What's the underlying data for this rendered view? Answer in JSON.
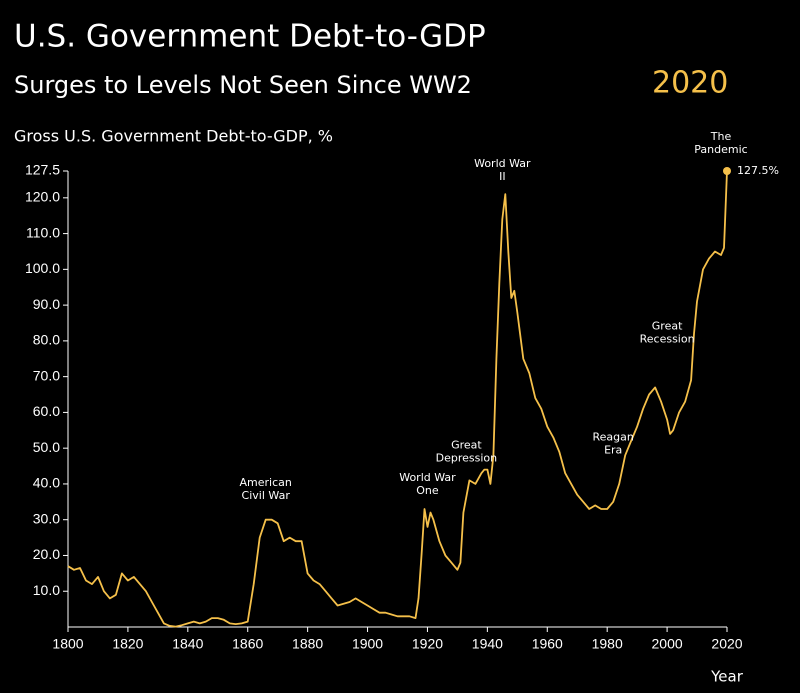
{
  "chart_data": {
    "type": "line",
    "title": "U.S. Government Debt-to-GDP",
    "subtitle": "Surges to Levels Not Seen Since WW2",
    "subtitle_highlight": "2020",
    "y_label": "Gross U.S. Government Debt-to-GDP, %",
    "x_label": "Year",
    "color": "#f5c04a",
    "x": [
      1800,
      1802,
      1804,
      1806,
      1808,
      1810,
      1812,
      1814,
      1816,
      1818,
      1820,
      1822,
      1824,
      1826,
      1828,
      1830,
      1832,
      1834,
      1836,
      1838,
      1840,
      1842,
      1844,
      1846,
      1848,
      1850,
      1852,
      1854,
      1856,
      1858,
      1860,
      1862,
      1864,
      1866,
      1868,
      1870,
      1872,
      1874,
      1876,
      1878,
      1880,
      1882,
      1884,
      1886,
      1888,
      1890,
      1892,
      1894,
      1896,
      1898,
      1900,
      1902,
      1904,
      1906,
      1908,
      1910,
      1912,
      1914,
      1916,
      1917,
      1918,
      1919,
      1920,
      1921,
      1922,
      1924,
      1926,
      1928,
      1930,
      1931,
      1932,
      1934,
      1936,
      1938,
      1939,
      1940,
      1941,
      1942,
      1943,
      1944,
      1945,
      1946,
      1947,
      1948,
      1949,
      1950,
      1952,
      1954,
      1956,
      1958,
      1960,
      1962,
      1964,
      1966,
      1968,
      1970,
      1972,
      1974,
      1976,
      1978,
      1980,
      1982,
      1984,
      1986,
      1988,
      1990,
      1992,
      1994,
      1996,
      1998,
      2000,
      2001,
      2002,
      2004,
      2006,
      2008,
      2009,
      2010,
      2012,
      2014,
      2016,
      2018,
      2019,
      2020
    ],
    "values": [
      17,
      16,
      16.5,
      13,
      12,
      14,
      10,
      8,
      9,
      15,
      13,
      14,
      12,
      10,
      7,
      4,
      1,
      0.3,
      0.1,
      0.5,
      1,
      1.5,
      1,
      1.5,
      2.5,
      2.5,
      2,
      1,
      0.8,
      1,
      1.5,
      12,
      25,
      30,
      30,
      29,
      24,
      25,
      24,
      24,
      15,
      13,
      12,
      10,
      8,
      6,
      6.5,
      7,
      8,
      7,
      6,
      5,
      4,
      4,
      3.5,
      3,
      3,
      3,
      2.5,
      8,
      20,
      33,
      28,
      32,
      30,
      24,
      20,
      18,
      16,
      18,
      32,
      41,
      40,
      43,
      44,
      44,
      40,
      48,
      75,
      96,
      114,
      121,
      105,
      92,
      94,
      88,
      75,
      71,
      64,
      61,
      56,
      53,
      49,
      43,
      40,
      37,
      35,
      33,
      34,
      33,
      33,
      35,
      40,
      48,
      52,
      56,
      61,
      65,
      67,
      63,
      58,
      54,
      55,
      60,
      63,
      69,
      82,
      91,
      100,
      103,
      105,
      104,
      106,
      127.5
    ],
    "xlim": [
      1800,
      2020
    ],
    "xticks": [
      1800,
      1820,
      1840,
      1860,
      1880,
      1900,
      1920,
      1940,
      1960,
      1980,
      2000,
      2020
    ],
    "ylim": [
      0,
      127.5
    ],
    "yticks": [
      {
        "value": 10,
        "label": "10.0"
      },
      {
        "value": 20,
        "label": "20.0"
      },
      {
        "value": 30,
        "label": "30.0"
      },
      {
        "value": 40,
        "label": "40.0"
      },
      {
        "value": 50,
        "label": "50.0"
      },
      {
        "value": 60,
        "label": "60.0"
      },
      {
        "value": 70,
        "label": "70.0"
      },
      {
        "value": 80,
        "label": "80.0"
      },
      {
        "value": 90,
        "label": "90.0"
      },
      {
        "value": 100,
        "label": "100.0"
      },
      {
        "value": 110,
        "label": "110.0"
      },
      {
        "value": 120,
        "label": "120.0"
      },
      127.5
    ],
    "annotations": [
      {
        "lines": [
          "American",
          "Civil War"
        ],
        "x": 1866,
        "y": 40.3
      },
      {
        "lines": [
          "World War",
          "One"
        ],
        "x": 1920,
        "y": 41.7
      },
      {
        "lines": [
          "Great",
          "Depression"
        ],
        "x": 1933,
        "y": 50.7
      },
      {
        "lines": [
          "World War",
          "II"
        ],
        "x": 1945,
        "y": 129.4
      },
      {
        "lines": [
          "Reagan",
          "Era"
        ],
        "x": 1982,
        "y": 53
      },
      {
        "lines": [
          "Great",
          "Recession"
        ],
        "x": 2000,
        "y": 84
      },
      {
        "lines": [
          "The",
          "Pandemic"
        ],
        "x": 2018,
        "y": 137
      }
    ],
    "end_label": "127.5%"
  }
}
